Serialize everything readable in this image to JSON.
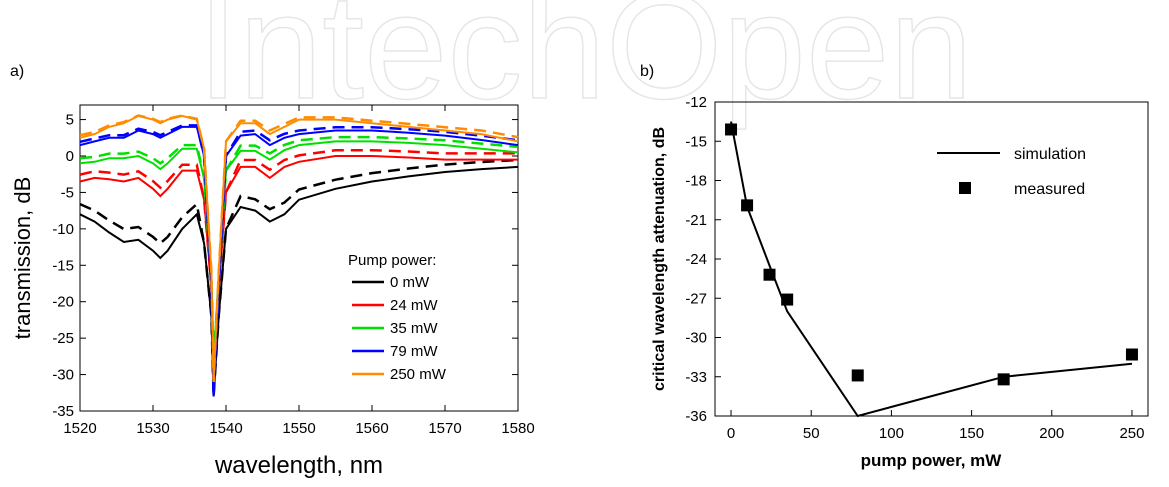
{
  "watermark": "IntechOpen",
  "chart_data": [
    {
      "panel_label": "a)",
      "type": "line",
      "xlabel": "wavelength, nm",
      "ylabel": "transmission, dB",
      "xlim": [
        1520,
        1580
      ],
      "ylim": [
        -35,
        7
      ],
      "xticks": [
        1520,
        1530,
        1540,
        1550,
        1560,
        1570,
        1580
      ],
      "yticks": [
        5,
        0,
        -5,
        -10,
        -15,
        -20,
        -25,
        -30,
        -35
      ],
      "grid": false,
      "legend_title": "Pump power:",
      "legend_position": "bottom-right",
      "series": [
        {
          "name": "0 mW",
          "color": "#000000",
          "x": [
            1520,
            1522,
            1524,
            1526,
            1528,
            1530,
            1531,
            1532,
            1534,
            1536,
            1537,
            1538,
            1538.3,
            1539,
            1540,
            1542,
            1544,
            1546,
            1548,
            1550,
            1555,
            1560,
            1565,
            1570,
            1575,
            1580
          ],
          "y": [
            -8,
            -9,
            -10.5,
            -11.8,
            -11.5,
            -13,
            -14,
            -13,
            -10,
            -8,
            -12,
            -22,
            -33,
            -22,
            -10,
            -7,
            -7.5,
            -9,
            -8,
            -6,
            -4.5,
            -3.5,
            -2.8,
            -2.2,
            -1.8,
            -1.5
          ]
        },
        {
          "name": "24 mW",
          "color": "#ff0000",
          "x": [
            1520,
            1522,
            1524,
            1526,
            1528,
            1530,
            1531,
            1532,
            1534,
            1536,
            1537,
            1538,
            1538.3,
            1539,
            1540,
            1542,
            1544,
            1546,
            1548,
            1550,
            1555,
            1560,
            1565,
            1570,
            1575,
            1580
          ],
          "y": [
            -3.5,
            -3,
            -3.2,
            -3.5,
            -3,
            -4.5,
            -5.5,
            -4.5,
            -2,
            -2,
            -6,
            -18,
            -29,
            -18,
            -5,
            -1.5,
            -1.5,
            -3,
            -1.5,
            -0.8,
            0,
            0,
            -0.2,
            -0.5,
            -0.5,
            -0.5
          ]
        },
        {
          "name": "35 mW",
          "color": "#00e000",
          "x": [
            1520,
            1522,
            1524,
            1526,
            1528,
            1530,
            1531,
            1532,
            1534,
            1536,
            1537,
            1538,
            1538.3,
            1539,
            1540,
            1542,
            1544,
            1546,
            1548,
            1550,
            1555,
            1560,
            1565,
            1570,
            1575,
            1580
          ],
          "y": [
            -1,
            -0.8,
            -0.3,
            -0.3,
            0,
            -1,
            -1.8,
            -1,
            1,
            1,
            -3,
            -17,
            -28,
            -17,
            -2,
            0.7,
            0.7,
            -0.5,
            0.8,
            1.5,
            2,
            2,
            1.8,
            1.5,
            1,
            0.5
          ]
        },
        {
          "name": "79 mW",
          "color": "#0000ff",
          "x": [
            1520,
            1522,
            1524,
            1526,
            1528,
            1530,
            1531,
            1532,
            1534,
            1536,
            1537,
            1538,
            1538.3,
            1539,
            1540,
            1542,
            1544,
            1546,
            1548,
            1550,
            1555,
            1560,
            1565,
            1570,
            1575,
            1580
          ],
          "y": [
            1.5,
            2,
            2.5,
            2.5,
            3.5,
            3,
            2.5,
            3,
            4,
            4,
            0,
            -18,
            -33,
            -18,
            0,
            2.8,
            3,
            1.5,
            2.5,
            3,
            3.5,
            3.5,
            3.2,
            2.8,
            2.2,
            1.5
          ]
        },
        {
          "name": "250 mW",
          "color": "#ff8c00",
          "x": [
            1520,
            1522,
            1524,
            1526,
            1528,
            1530,
            1531,
            1532,
            1534,
            1536,
            1537,
            1538,
            1538.3,
            1539,
            1540,
            1542,
            1544,
            1546,
            1548,
            1550,
            1555,
            1560,
            1565,
            1570,
            1575,
            1580
          ],
          "y": [
            2.5,
            3,
            4,
            4.5,
            5.5,
            5,
            4.5,
            5,
            5.5,
            5,
            1,
            -16,
            -31,
            -16,
            2,
            4.5,
            4.5,
            3,
            4,
            5,
            5,
            4.5,
            4,
            3.5,
            3,
            2
          ]
        }
      ],
      "simulated_series_style": "dashed"
    },
    {
      "panel_label": "b)",
      "type": "scatter",
      "xlabel": "pump power, mW",
      "ylabel": "critical wavelength attenuation, dB",
      "xlim": [
        -10,
        260
      ],
      "ylim": [
        -36,
        -12
      ],
      "xticks": [
        0,
        50,
        100,
        150,
        200,
        250
      ],
      "yticks": [
        -12,
        -15,
        -18,
        -21,
        -24,
        -27,
        -30,
        -33,
        -36
      ],
      "grid": false,
      "legend_position": "top-right",
      "series": [
        {
          "name": "simulation",
          "style": "line",
          "color": "#000000",
          "x": [
            0,
            10,
            24,
            35,
            79,
            170,
            250
          ],
          "y": [
            -13.5,
            -20,
            -24.5,
            -28,
            -36,
            -33,
            -32
          ]
        },
        {
          "name": "measured",
          "style": "square-marker",
          "color": "#000000",
          "x": [
            0,
            10,
            24,
            35,
            79,
            170,
            250
          ],
          "y": [
            -14.1,
            -19.9,
            -25.2,
            -27.1,
            -32.9,
            -33.2,
            -31.3
          ]
        }
      ]
    }
  ]
}
